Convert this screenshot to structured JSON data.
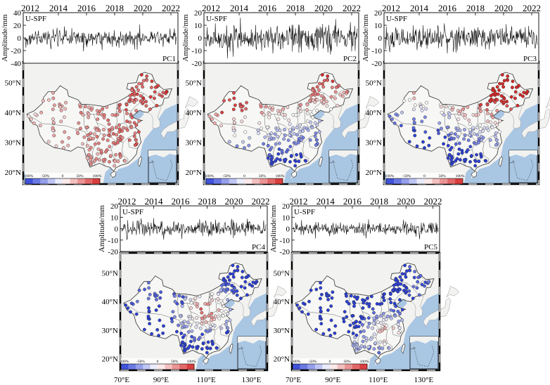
{
  "figure": {
    "panels": [
      {
        "id": "PC1",
        "pc_label": "PC1",
        "series_label": "U-SPF",
        "ylabel": "Amplitude/mm",
        "year_ticks": [
          "2012",
          "2014",
          "2016",
          "2018",
          "2020",
          "2022"
        ],
        "y_ticks": [
          "40",
          "20",
          "0",
          "-20",
          "-40"
        ],
        "ylim": [
          -40,
          40
        ],
        "noise_amplitude": 12
      },
      {
        "id": "PC2",
        "pc_label": "PC2",
        "series_label": "U-SPF",
        "ylabel": "Amplitude/mm",
        "year_ticks": [
          "2012",
          "2014",
          "2016",
          "2018",
          "2020",
          "2022"
        ],
        "y_ticks": [
          "20",
          "10",
          "0",
          "-10",
          "-20"
        ],
        "ylim": [
          -20,
          20
        ],
        "noise_amplitude": 9
      },
      {
        "id": "PC3",
        "pc_label": "PC3",
        "series_label": "U-SPF",
        "ylabel": "Amplitude/mm",
        "year_ticks": [
          "2012",
          "2014",
          "2016",
          "2018",
          "2020",
          "2022"
        ],
        "y_ticks": [
          "20",
          "10",
          "0",
          "-10",
          "-20"
        ],
        "ylim": [
          -20,
          20
        ],
        "noise_amplitude": 8
      },
      {
        "id": "PC4",
        "pc_label": "PC4",
        "series_label": "U-SPF",
        "ylabel": "Amplitude/mm",
        "year_ticks": [
          "2012",
          "2014",
          "2016",
          "2018",
          "2020",
          "2022"
        ],
        "y_ticks": [
          "20",
          "10",
          "0",
          "-10",
          "-20"
        ],
        "ylim": [
          -20,
          20
        ],
        "noise_amplitude": 6
      },
      {
        "id": "PC5",
        "pc_label": "PC5",
        "series_label": "U-SPF",
        "ylabel": "Amplitude/mm",
        "year_ticks": [
          "2012",
          "2014",
          "2016",
          "2018",
          "2020",
          "2022"
        ],
        "y_ticks": [
          "20",
          "10",
          "0",
          "-10",
          "-20"
        ],
        "ylim": [
          -20,
          20
        ],
        "noise_amplitude": 5
      }
    ],
    "map": {
      "lat_labels": [
        "50°N",
        "40°N",
        "30°N",
        "20°N"
      ],
      "lon_labels": [
        "70°E",
        "90°E",
        "110°E",
        "130°E"
      ],
      "colorbar_labels": [
        "-100%",
        "-50%",
        "0",
        "50%",
        "100%"
      ],
      "colors": {
        "ocean": "#a9c6e3",
        "land": "#f2f2f0",
        "positive": "#d62828",
        "negative": "#2b3fd6",
        "neutral": "#ffffff"
      }
    }
  }
}
